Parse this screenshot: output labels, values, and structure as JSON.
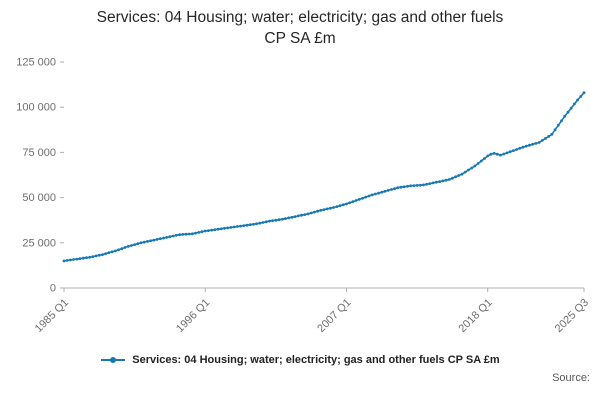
{
  "title": {
    "line1": "Services: 04 Housing; water; electricity; gas and other fuels",
    "line2": "CP SA £m"
  },
  "legend": {
    "label": "Services: 04 Housing; water; electricity; gas and other fuels CP SA £m"
  },
  "footer": {
    "source": "Source:"
  },
  "chart_data": {
    "type": "line",
    "title": "Services: 04 Housing; water; electricity; gas and other fuels CP SA £m",
    "xlabel": "",
    "ylabel": "",
    "x_unit": "quarter",
    "x_start": "1985 Q1",
    "x_end": "2025 Q3",
    "xtick_indices": [
      0,
      44,
      88,
      132,
      162
    ],
    "xtick_labels": [
      "1985 Q1",
      "1996 Q1",
      "2007 Q1",
      "2018 Q1",
      "2025 Q3"
    ],
    "ylim": [
      0,
      125000
    ],
    "yticks": [
      0,
      25000,
      50000,
      75000,
      100000,
      125000
    ],
    "ytick_labels": [
      "0",
      "25 000",
      "50 000",
      "75 000",
      "100 000",
      "125 000"
    ],
    "grid": false,
    "legend_position": "bottom",
    "line_color": "#1878b4",
    "axis_color": "#b0b0b0",
    "tick_label_color": "#6e6e6e",
    "values": [
      15000,
      15250,
      15500,
      15750,
      16000,
      16250,
      16500,
      16750,
      17000,
      17375,
      17750,
      18125,
      18500,
      19000,
      19500,
      20000,
      20500,
      21125,
      21750,
      22375,
      23000,
      23500,
      24000,
      24500,
      25000,
      25375,
      25750,
      26125,
      26500,
      26875,
      27250,
      27625,
      28000,
      28375,
      28750,
      29125,
      29500,
      29625,
      29750,
      29875,
      30000,
      30375,
      30750,
      31125,
      31500,
      31750,
      32000,
      32250,
      32500,
      32750,
      33000,
      33250,
      33500,
      33750,
      34000,
      34250,
      34500,
      34750,
      35000,
      35250,
      35500,
      35875,
      36250,
      36625,
      37000,
      37250,
      37500,
      37750,
      38000,
      38375,
      38750,
      39125,
      39500,
      39875,
      40250,
      40625,
      41000,
      41500,
      42000,
      42500,
      43000,
      43375,
      43750,
      44125,
      44500,
      45000,
      45500,
      46000,
      46500,
      47125,
      47750,
      48375,
      49000,
      49625,
      50250,
      50875,
      51500,
      52000,
      52500,
      53000,
      53500,
      54000,
      54500,
      55000,
      55500,
      55750,
      56000,
      56250,
      56500,
      56625,
      56750,
      56875,
      57000,
      57375,
      57750,
      58125,
      58500,
      58875,
      59250,
      59625,
      60000,
      60750,
      61500,
      62250,
      63000,
      64125,
      65250,
      66375,
      67500,
      68875,
      70250,
      71625,
      73000,
      74000,
      74500,
      74000,
      73500,
      74125,
      74750,
      75375,
      76000,
      76625,
      77250,
      77875,
      78500,
      79000,
      79500,
      80000,
      80500,
      81625,
      82750,
      83875,
      85000,
      87500,
      90000,
      92500,
      95000,
      97250,
      99500,
      101750,
      104000,
      106000,
      108000
    ]
  }
}
